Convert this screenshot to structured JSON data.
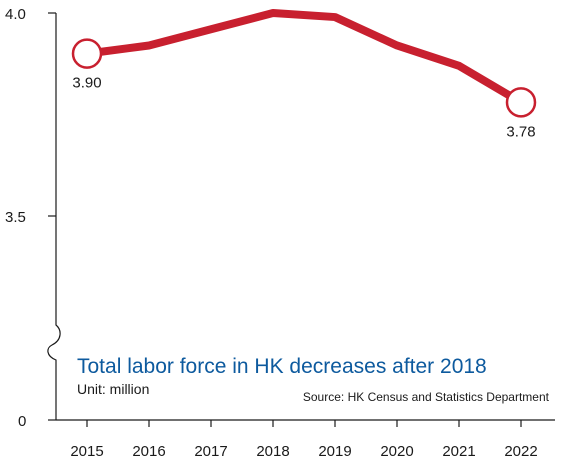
{
  "chart_data": {
    "type": "line",
    "title": "Total labor force in HK decreases after 2018",
    "unit": "Unit: million",
    "source": "Source: HK Census and Statistics Department",
    "x": [
      "2015",
      "2016",
      "2017",
      "2018",
      "2019",
      "2020",
      "2021",
      "2022"
    ],
    "y_ticks": [
      "4.0",
      "3.5",
      "0"
    ],
    "y_axis_break": true,
    "series": [
      {
        "values": [
          3.9,
          3.92,
          3.96,
          4.0,
          3.99,
          3.92,
          3.87,
          3.78
        ],
        "color": "#c8202f"
      }
    ],
    "point_labels": [
      {
        "index": 0,
        "text": "3.90"
      },
      {
        "index": 7,
        "text": "3.78"
      }
    ],
    "grid": false,
    "legend": "none"
  }
}
